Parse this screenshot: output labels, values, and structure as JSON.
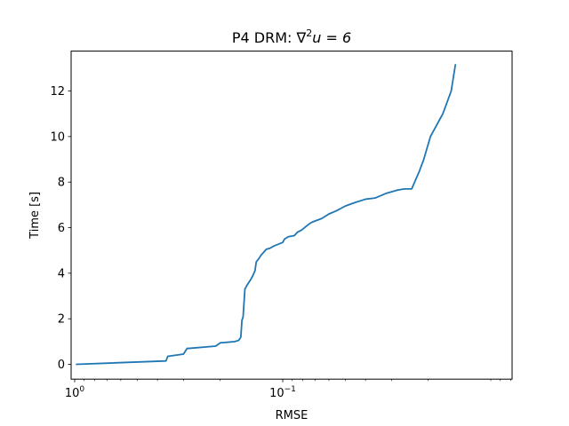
{
  "chart_data": {
    "type": "line",
    "title_prefix": "P4 DRM: ∇",
    "title_sup": "2",
    "title_rest": "u = 6",
    "xlabel": "RMSE",
    "ylabel": "Time [s]",
    "x_scale": "log",
    "x_reversed": true,
    "xlim": [
      1.04,
      0.0079
    ],
    "ylim": [
      -0.65,
      13.75
    ],
    "grid": false,
    "x_major_ticks": [
      {
        "value": 1.0,
        "base": "10",
        "exp": "0"
      },
      {
        "value": 0.1,
        "base": "10",
        "exp": "−1"
      }
    ],
    "x_minor_ticks": [
      0.9,
      0.8,
      0.7,
      0.6,
      0.5,
      0.4,
      0.3,
      0.2,
      0.09,
      0.08,
      0.07,
      0.06,
      0.05,
      0.04,
      0.03,
      0.02,
      0.01,
      0.009,
      0.008
    ],
    "y_ticks": [
      0,
      2,
      4,
      6,
      8,
      10,
      12
    ],
    "series": [
      {
        "color": "#1f77b4",
        "x": [
          0.98,
          0.364,
          0.357,
          0.3,
          0.288,
          0.283,
          0.21,
          0.199,
          0.194,
          0.17,
          0.163,
          0.16,
          0.159,
          0.157,
          0.156,
          0.155,
          0.152,
          0.149,
          0.143,
          0.14,
          0.136,
          0.134,
          0.13,
          0.127,
          0.124,
          0.12,
          0.115,
          0.11,
          0.1,
          0.098,
          0.094,
          0.088,
          0.085,
          0.081,
          0.075,
          0.072,
          0.065,
          0.06,
          0.055,
          0.05,
          0.045,
          0.04,
          0.036,
          0.032,
          0.028,
          0.026,
          0.024,
          0.022,
          0.0218,
          0.021,
          0.0195,
          0.017,
          0.0155,
          0.0148
        ],
        "y": [
          0.0,
          0.15,
          0.35,
          0.45,
          0.7,
          0.7,
          0.8,
          0.95,
          0.95,
          1.0,
          1.05,
          1.15,
          1.2,
          1.95,
          2.0,
          2.1,
          3.3,
          3.45,
          3.7,
          3.85,
          4.1,
          4.5,
          4.65,
          4.8,
          4.9,
          5.05,
          5.1,
          5.2,
          5.35,
          5.5,
          5.6,
          5.65,
          5.8,
          5.9,
          6.15,
          6.25,
          6.4,
          6.6,
          6.75,
          6.95,
          7.1,
          7.25,
          7.3,
          7.5,
          7.65,
          7.7,
          7.7,
          8.5,
          8.6,
          9.0,
          10.0,
          11.0,
          12.0,
          13.15
        ]
      }
    ]
  }
}
